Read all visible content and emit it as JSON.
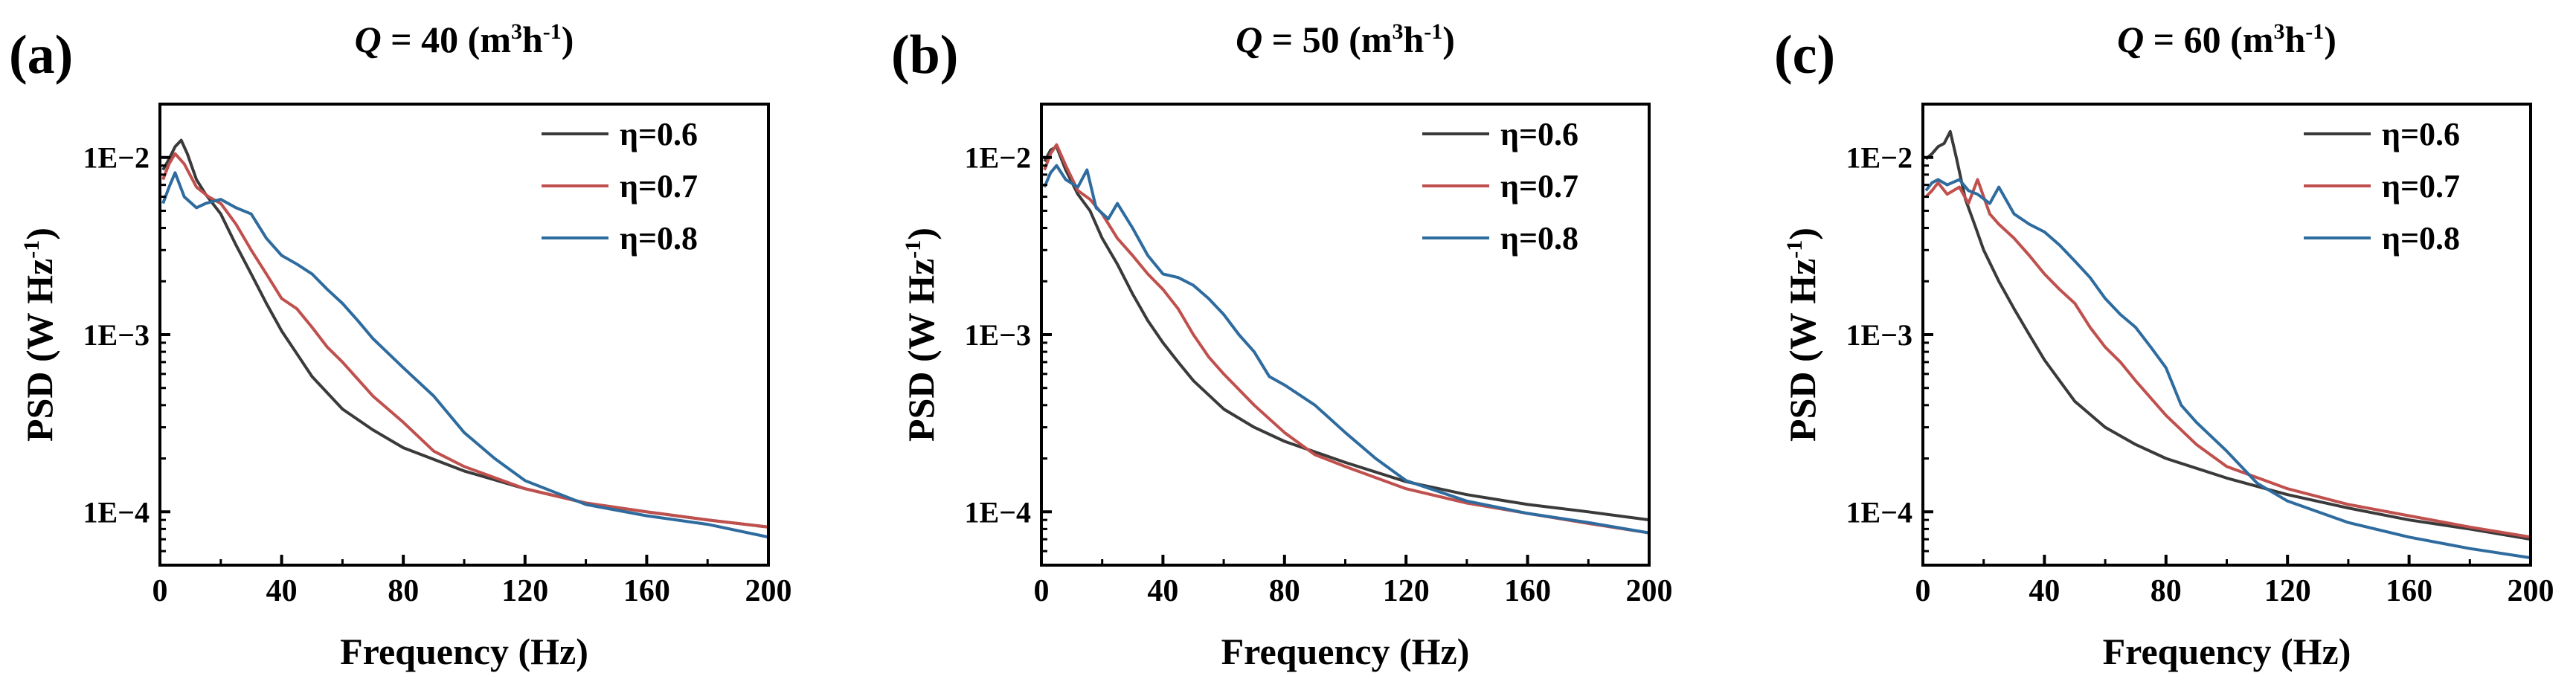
{
  "chart_data": [
    {
      "panel_label": "(a)",
      "title_var": "Q",
      "title_eq": " = 40 (m",
      "title_unit_a": "3",
      "title_mid": "h",
      "title_unit_b": "-1",
      "title_close": ")",
      "type": "line",
      "xlabel": "Frequency (Hz)",
      "ylabel_main": "PSD (W Hz",
      "ylabel_sup": "-1",
      "ylabel_close": ")",
      "xlim": [
        0,
        200
      ],
      "ylim": [
        5e-05,
        0.02
      ],
      "yscale": "log",
      "xticks": [
        0,
        40,
        80,
        120,
        160,
        200
      ],
      "yticks": [
        0.0001,
        0.001,
        0.01
      ],
      "ytick_labels": [
        "1E−4",
        "1E−3",
        "1E−2"
      ],
      "legend_position": "top-right",
      "series": [
        {
          "name": "η=0.6",
          "color": "#3a3a3a",
          "points": [
            [
              1,
              0.0085
            ],
            [
              3,
              0.0098
            ],
            [
              5,
              0.0115
            ],
            [
              7,
              0.0125
            ],
            [
              9,
              0.0105
            ],
            [
              12,
              0.0075
            ],
            [
              15,
              0.0062
            ],
            [
              20,
              0.0048
            ],
            [
              25,
              0.0032
            ],
            [
              30,
              0.0022
            ],
            [
              35,
              0.0015
            ],
            [
              40,
              0.00105
            ],
            [
              45,
              0.00078
            ],
            [
              50,
              0.00058
            ],
            [
              60,
              0.00038
            ],
            [
              70,
              0.00029
            ],
            [
              80,
              0.00023
            ],
            [
              100,
              0.00017
            ],
            [
              120,
              0.000135
            ],
            [
              140,
              0.000112
            ],
            [
              160,
              0.0001
            ],
            [
              180,
              9e-05
            ],
            [
              200,
              8.2e-05
            ]
          ]
        },
        {
          "name": "η=0.7",
          "color": "#c0504d",
          "points": [
            [
              1,
              0.0075
            ],
            [
              3,
              0.0092
            ],
            [
              5,
              0.0105
            ],
            [
              8,
              0.0092
            ],
            [
              12,
              0.0068
            ],
            [
              16,
              0.006
            ],
            [
              20,
              0.0055
            ],
            [
              25,
              0.0042
            ],
            [
              30,
              0.003
            ],
            [
              35,
              0.0022
            ],
            [
              40,
              0.0016
            ],
            [
              45,
              0.0014
            ],
            [
              50,
              0.0011
            ],
            [
              55,
              0.00085
            ],
            [
              60,
              0.0007
            ],
            [
              70,
              0.00045
            ],
            [
              80,
              0.00032
            ],
            [
              90,
              0.00022
            ],
            [
              100,
              0.00018
            ],
            [
              120,
              0.000135
            ],
            [
              140,
              0.000112
            ],
            [
              160,
              0.0001
            ],
            [
              180,
              9e-05
            ],
            [
              200,
              8.2e-05
            ]
          ]
        },
        {
          "name": "η=0.8",
          "color": "#2e6b9e",
          "points": [
            [
              1,
              0.0055
            ],
            [
              3,
              0.0068
            ],
            [
              5,
              0.0082
            ],
            [
              8,
              0.006
            ],
            [
              12,
              0.0052
            ],
            [
              15,
              0.0055
            ],
            [
              20,
              0.0058
            ],
            [
              25,
              0.0052
            ],
            [
              30,
              0.0048
            ],
            [
              35,
              0.0035
            ],
            [
              40,
              0.0028
            ],
            [
              45,
              0.0025
            ],
            [
              50,
              0.0022
            ],
            [
              55,
              0.0018
            ],
            [
              60,
              0.0015
            ],
            [
              65,
              0.0012
            ],
            [
              70,
              0.00095
            ],
            [
              80,
              0.00065
            ],
            [
              90,
              0.00045
            ],
            [
              100,
              0.00028
            ],
            [
              110,
              0.0002
            ],
            [
              120,
              0.00015
            ],
            [
              140,
              0.00011
            ],
            [
              160,
              9.5e-05
            ],
            [
              180,
              8.5e-05
            ],
            [
              200,
              7.2e-05
            ]
          ]
        }
      ]
    },
    {
      "panel_label": "(b)",
      "title_var": "Q",
      "title_eq": " = 50 (m",
      "title_unit_a": "3",
      "title_mid": "h",
      "title_unit_b": "-1",
      "title_close": ")",
      "type": "line",
      "xlabel": "Frequency (Hz)",
      "ylabel_main": "PSD (W Hz",
      "ylabel_sup": "-1",
      "ylabel_close": ")",
      "xlim": [
        0,
        200
      ],
      "ylim": [
        5e-05,
        0.02
      ],
      "yscale": "log",
      "xticks": [
        0,
        40,
        80,
        120,
        160,
        200
      ],
      "yticks": [
        0.0001,
        0.001,
        0.01
      ],
      "ytick_labels": [
        "1E−4",
        "1E−3",
        "1E−2"
      ],
      "legend_position": "top-right",
      "series": [
        {
          "name": "η=0.6",
          "color": "#3a3a3a",
          "points": [
            [
              1,
              0.0095
            ],
            [
              3,
              0.011
            ],
            [
              5,
              0.0115
            ],
            [
              8,
              0.0085
            ],
            [
              12,
              0.0062
            ],
            [
              16,
              0.005
            ],
            [
              20,
              0.0035
            ],
            [
              25,
              0.0025
            ],
            [
              30,
              0.0017
            ],
            [
              35,
              0.0012
            ],
            [
              40,
              0.0009
            ],
            [
              45,
              0.0007
            ],
            [
              50,
              0.00055
            ],
            [
              60,
              0.00038
            ],
            [
              70,
              0.0003
            ],
            [
              80,
              0.00025
            ],
            [
              100,
              0.00019
            ],
            [
              120,
              0.000148
            ],
            [
              140,
              0.000125
            ],
            [
              160,
              0.00011
            ],
            [
              180,
              0.0001
            ],
            [
              200,
              9e-05
            ]
          ]
        },
        {
          "name": "η=0.7",
          "color": "#c0504d",
          "points": [
            [
              1,
              0.0085
            ],
            [
              3,
              0.0105
            ],
            [
              5,
              0.0118
            ],
            [
              8,
              0.009
            ],
            [
              12,
              0.0065
            ],
            [
              16,
              0.0058
            ],
            [
              20,
              0.0048
            ],
            [
              25,
              0.0035
            ],
            [
              30,
              0.0028
            ],
            [
              35,
              0.0022
            ],
            [
              40,
              0.0018
            ],
            [
              45,
              0.0014
            ],
            [
              50,
              0.001
            ],
            [
              55,
              0.00075
            ],
            [
              60,
              0.0006
            ],
            [
              70,
              0.0004
            ],
            [
              80,
              0.00028
            ],
            [
              90,
              0.00021
            ],
            [
              100,
              0.00018
            ],
            [
              120,
              0.000135
            ],
            [
              140,
              0.000112
            ],
            [
              160,
              9.8e-05
            ],
            [
              180,
              8.6e-05
            ],
            [
              200,
              7.6e-05
            ]
          ]
        },
        {
          "name": "η=0.8",
          "color": "#2e6b9e",
          "points": [
            [
              1,
              0.0068
            ],
            [
              3,
              0.0082
            ],
            [
              5,
              0.009
            ],
            [
              8,
              0.0075
            ],
            [
              12,
              0.0068
            ],
            [
              15,
              0.0085
            ],
            [
              18,
              0.0052
            ],
            [
              22,
              0.0045
            ],
            [
              25,
              0.0055
            ],
            [
              30,
              0.004
            ],
            [
              35,
              0.0028
            ],
            [
              40,
              0.0022
            ],
            [
              45,
              0.0021
            ],
            [
              50,
              0.0019
            ],
            [
              55,
              0.0016
            ],
            [
              60,
              0.0013
            ],
            [
              65,
              0.001
            ],
            [
              70,
              0.0008
            ],
            [
              75,
              0.00058
            ],
            [
              80,
              0.00052
            ],
            [
              90,
              0.0004
            ],
            [
              100,
              0.00028
            ],
            [
              110,
              0.0002
            ],
            [
              120,
              0.00015
            ],
            [
              140,
              0.000115
            ],
            [
              160,
              9.8e-05
            ],
            [
              180,
              8.7e-05
            ],
            [
              200,
              7.6e-05
            ]
          ]
        }
      ]
    },
    {
      "panel_label": "(c)",
      "title_var": "Q",
      "title_eq": " = 60 (m",
      "title_unit_a": "3",
      "title_mid": "h",
      "title_unit_b": "-1",
      "title_close": ")",
      "type": "line",
      "xlabel": "Frequency (Hz)",
      "ylabel_main": "PSD (W Hz",
      "ylabel_sup": "-1",
      "ylabel_close": ")",
      "xlim": [
        0,
        200
      ],
      "ylim": [
        5e-05,
        0.02
      ],
      "yscale": "log",
      "xticks": [
        0,
        40,
        80,
        120,
        160,
        200
      ],
      "yticks": [
        0.0001,
        0.001,
        0.01
      ],
      "ytick_labels": [
        "1E−4",
        "1E−3",
        "1E−2"
      ],
      "legend_position": "top-right",
      "series": [
        {
          "name": "η=0.6",
          "color": "#3a3a3a",
          "points": [
            [
              1,
              0.0098
            ],
            [
              3,
              0.0105
            ],
            [
              5,
              0.0115
            ],
            [
              7,
              0.012
            ],
            [
              9,
              0.014
            ],
            [
              11,
              0.01
            ],
            [
              14,
              0.0058
            ],
            [
              17,
              0.0042
            ],
            [
              20,
              0.003
            ],
            [
              25,
              0.002
            ],
            [
              30,
              0.0014
            ],
            [
              35,
              0.001
            ],
            [
              40,
              0.00072
            ],
            [
              45,
              0.00055
            ],
            [
              50,
              0.00042
            ],
            [
              60,
              0.0003
            ],
            [
              70,
              0.00024
            ],
            [
              80,
              0.0002
            ],
            [
              100,
              0.000155
            ],
            [
              120,
              0.000125
            ],
            [
              140,
              0.000105
            ],
            [
              160,
              9e-05
            ],
            [
              180,
              8e-05
            ],
            [
              200,
              7e-05
            ]
          ]
        },
        {
          "name": "η=0.7",
          "color": "#c0504d",
          "points": [
            [
              1,
              0.006
            ],
            [
              3,
              0.0065
            ],
            [
              5,
              0.0072
            ],
            [
              8,
              0.0062
            ],
            [
              12,
              0.0068
            ],
            [
              15,
              0.0055
            ],
            [
              18,
              0.0075
            ],
            [
              22,
              0.0048
            ],
            [
              25,
              0.0042
            ],
            [
              30,
              0.0035
            ],
            [
              35,
              0.0028
            ],
            [
              40,
              0.0022
            ],
            [
              45,
              0.0018
            ],
            [
              50,
              0.0015
            ],
            [
              55,
              0.0011
            ],
            [
              60,
              0.00085
            ],
            [
              65,
              0.0007
            ],
            [
              70,
              0.00055
            ],
            [
              80,
              0.00035
            ],
            [
              90,
              0.00024
            ],
            [
              100,
              0.00018
            ],
            [
              120,
              0.000135
            ],
            [
              140,
              0.00011
            ],
            [
              160,
              9.5e-05
            ],
            [
              180,
              8.2e-05
            ],
            [
              200,
              7.2e-05
            ]
          ]
        },
        {
          "name": "η=0.8",
          "color": "#2e6b9e",
          "points": [
            [
              1,
              0.0065
            ],
            [
              3,
              0.0072
            ],
            [
              5,
              0.0075
            ],
            [
              8,
              0.007
            ],
            [
              12,
              0.0075
            ],
            [
              15,
              0.0065
            ],
            [
              18,
              0.0062
            ],
            [
              22,
              0.0055
            ],
            [
              25,
              0.0068
            ],
            [
              30,
              0.0048
            ],
            [
              35,
              0.0042
            ],
            [
              40,
              0.0038
            ],
            [
              45,
              0.0032
            ],
            [
              50,
              0.0026
            ],
            [
              55,
              0.0021
            ],
            [
              60,
              0.0016
            ],
            [
              65,
              0.0013
            ],
            [
              70,
              0.0011
            ],
            [
              75,
              0.00085
            ],
            [
              80,
              0.00065
            ],
            [
              85,
              0.0004
            ],
            [
              90,
              0.00032
            ],
            [
              100,
              0.00022
            ],
            [
              110,
              0.000145
            ],
            [
              120,
              0.000115
            ],
            [
              140,
              8.7e-05
            ],
            [
              160,
              7.2e-05
            ],
            [
              180,
              6.2e-05
            ],
            [
              200,
              5.5e-05
            ]
          ]
        }
      ]
    }
  ]
}
